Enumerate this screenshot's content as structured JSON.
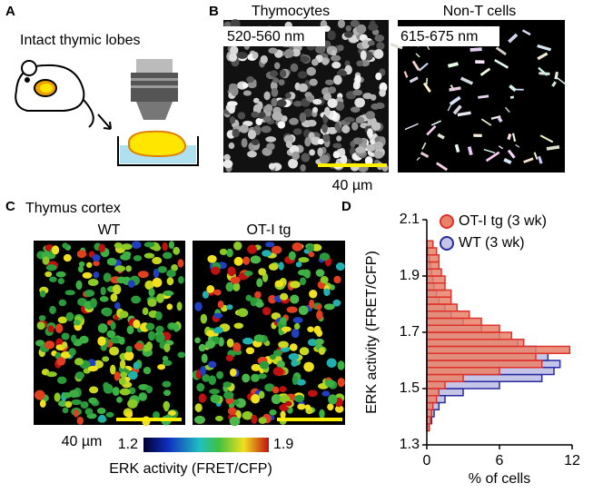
{
  "panels": {
    "a": {
      "label": "A",
      "title": "Intact thymic lobes"
    },
    "b": {
      "label": "B",
      "images": [
        {
          "title": "Thymocytes",
          "channel": "520-560 nm"
        },
        {
          "title": "Non-T cells",
          "channel": "615-675 nm"
        }
      ],
      "scale_bar": "40 µm"
    },
    "c": {
      "label": "C",
      "title": "Thymus cortex",
      "images": [
        "WT",
        "OT-I tg"
      ],
      "scale_bar": "40 µm",
      "colorbar": {
        "min": 1.2,
        "max": 1.9,
        "label": "ERK activity (FRET/CFP)"
      }
    },
    "d": {
      "label": "D"
    }
  },
  "chart_data": {
    "type": "histogram",
    "orientation": "horizontal",
    "ylabel": "ERK activity (FRET/CFP)",
    "xlabel": "% of cells",
    "bins": [
      1.35,
      1.375,
      1.4,
      1.425,
      1.45,
      1.475,
      1.5,
      1.525,
      1.55,
      1.575,
      1.6,
      1.625,
      1.65,
      1.675,
      1.7,
      1.725,
      1.75,
      1.775,
      1.8,
      1.825,
      1.85,
      1.875,
      1.9,
      1.925,
      1.95,
      1.975,
      2.0,
      2.025
    ],
    "series": [
      {
        "name": "OT-I tg (3 wk)",
        "color": "#e0302a",
        "fill": "#e8836a",
        "values": [
          0.2,
          0.3,
          0.4,
          0.5,
          0.8,
          1,
          1.5,
          3,
          6,
          9.5,
          9,
          11.8,
          8,
          7,
          6,
          4.5,
          3.5,
          2.5,
          2,
          2,
          1.5,
          1.5,
          1.2,
          1,
          1,
          0.8,
          0.5
        ]
      },
      {
        "name": "WT (3 wk)",
        "color": "#2a2aa0",
        "fill": "#c5c5e8",
        "values": [
          0.2,
          0.4,
          0.6,
          1,
          1.5,
          3,
          6,
          9.5,
          10.5,
          11,
          10,
          9,
          7.5,
          6,
          4.5,
          3,
          2,
          1.5,
          1,
          0.8,
          0.6,
          0.5,
          0.4,
          0.3,
          0.2,
          0.1,
          0
        ]
      }
    ],
    "xlim": [
      0,
      12
    ],
    "xticks": [
      0,
      6,
      12
    ],
    "ylim": [
      1.3,
      2.1
    ],
    "yticks": [
      1.3,
      1.5,
      1.7,
      1.9,
      2.1
    ],
    "legend": "upper right"
  }
}
